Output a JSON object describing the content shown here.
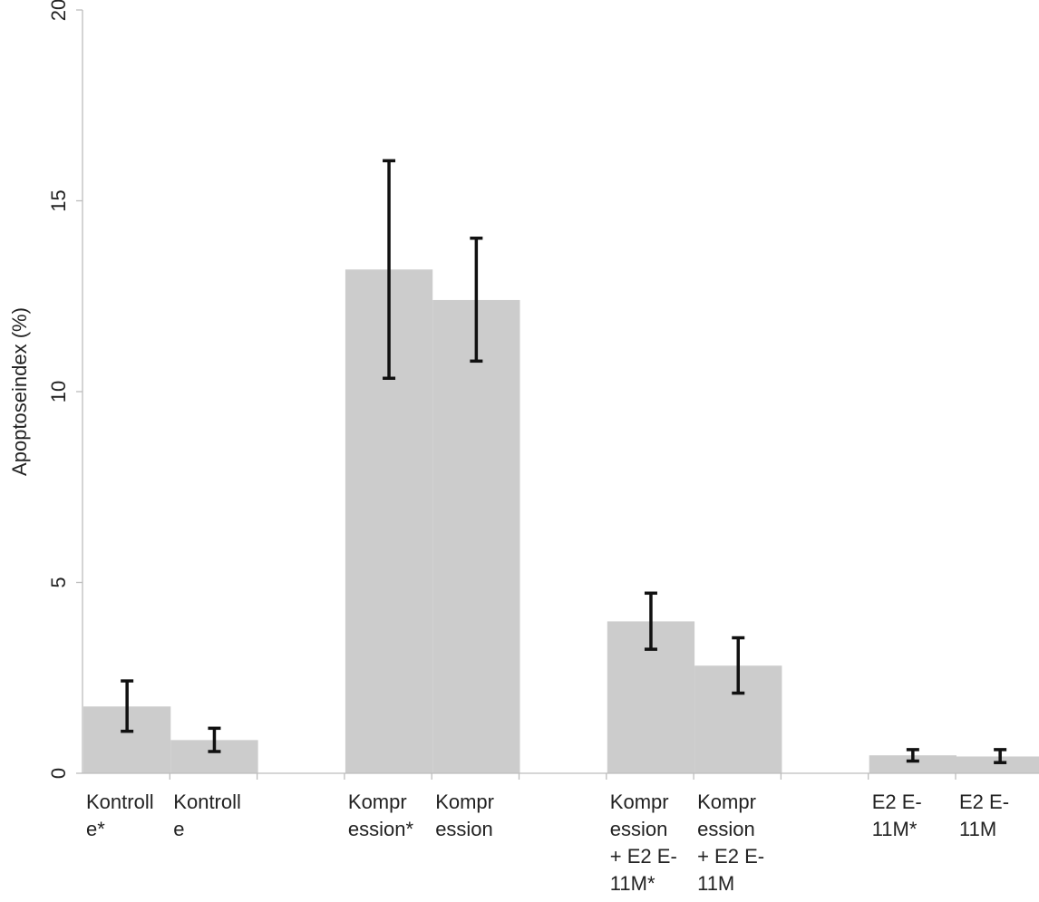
{
  "chart_data": {
    "type": "bar",
    "title": "",
    "xlabel": "",
    "ylabel": "Apoptoseindex (%)",
    "ylim": [
      0,
      20
    ],
    "yticks": [
      0,
      5,
      10,
      15,
      20
    ],
    "grid": false,
    "categories": [
      [
        "Kontroll",
        "e*"
      ],
      [
        "Kontroll",
        "e"
      ],
      [
        "Kompr",
        "ession*"
      ],
      [
        "Kompr",
        "ession"
      ],
      [
        "Kompr",
        "ession",
        "+ E2 E-",
        "11M*"
      ],
      [
        "Kompr",
        "ession",
        "+ E2 E-",
        "11M"
      ],
      [
        "E2 E-",
        "11M*"
      ],
      [
        "E2 E-",
        "11M"
      ]
    ],
    "values": [
      1.75,
      0.87,
      13.2,
      12.4,
      3.98,
      2.82,
      0.47,
      0.44
    ],
    "error_low": [
      1.1,
      0.57,
      10.35,
      10.8,
      3.25,
      2.1,
      0.32,
      0.28
    ],
    "error_high": [
      2.42,
      1.18,
      16.05,
      14.02,
      4.72,
      3.55,
      0.62,
      0.62
    ],
    "bar_color": "#cccccc",
    "error_color": "#111111",
    "axis_color": "#bdbdbd"
  }
}
